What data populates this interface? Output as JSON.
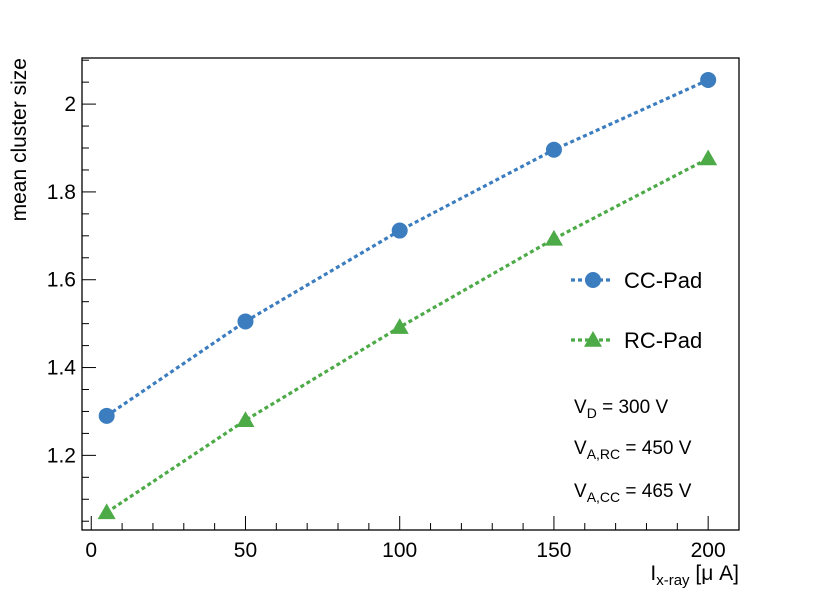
{
  "chart_data": {
    "type": "line",
    "title": "",
    "xlabel": {
      "main": "I",
      "sub": "x-ray",
      "unit": " [μ A]"
    },
    "ylabel": "mean cluster size",
    "xlim": [
      -3,
      210
    ],
    "ylim": [
      1.03,
      2.105
    ],
    "x_ticks": [
      0,
      50,
      100,
      150,
      200
    ],
    "x_tick_labels": [
      "0",
      "50",
      "100",
      "150",
      "200"
    ],
    "y_ticks": [
      1.2,
      1.4,
      1.6,
      1.8,
      2.0
    ],
    "y_tick_labels": [
      "1.2",
      "1.4",
      "1.6",
      "1.8",
      "2"
    ],
    "x_minor_step": 10,
    "y_minor_step": 0.05,
    "grid": false,
    "legend_position": "right",
    "series": [
      {
        "name": "CC-Pad",
        "marker": "circle",
        "color": "#3b7dbf",
        "x": [
          5,
          50,
          100,
          150,
          200
        ],
        "y": [
          1.29,
          1.505,
          1.712,
          1.896,
          2.055
        ]
      },
      {
        "name": "RC-Pad",
        "marker": "triangle",
        "color": "#4caa47",
        "x": [
          5,
          50,
          100,
          150,
          200
        ],
        "y": [
          1.07,
          1.28,
          1.492,
          1.693,
          1.876
        ]
      }
    ],
    "annotations": [
      {
        "main": "V",
        "sub": "D",
        "rest": " = 300 V"
      },
      {
        "main": "V",
        "sub": "A,RC",
        "rest": " = 450 V"
      },
      {
        "main": "V",
        "sub": "A,CC",
        "rest": " = 465 V"
      }
    ]
  }
}
